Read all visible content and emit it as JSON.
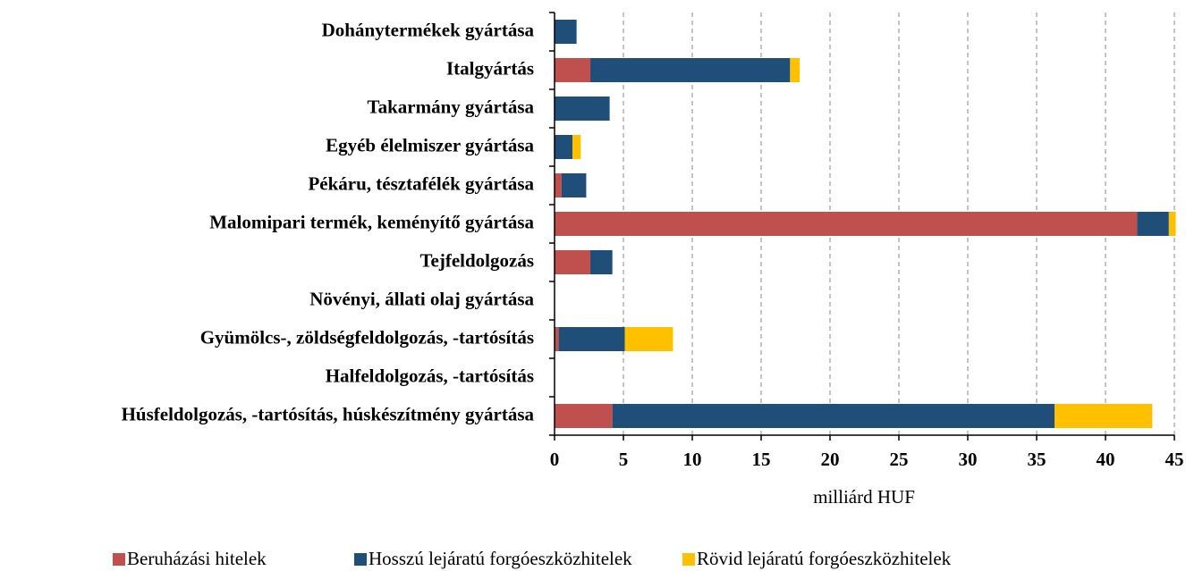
{
  "chart_data": {
    "type": "bar",
    "orientation": "horizontal",
    "stacked": true,
    "xlabel": "milliárd HUF",
    "categories": [
      "Dohánytermékek gyártása",
      "Italgyártás",
      "Takarmány gyártása",
      "Egyéb élelmiszer gyártása",
      "Pékáru, tésztafélék gyártása",
      "Malomipari termék, keményítő gyártása",
      "Tejfeldolgozás",
      "Növényi, állati olaj gyártása",
      "Gyümölcs-, zöldségfeldolgozás, -tartósítás",
      "Halfeldolgozás, -tartósítás",
      "Húsfeldolgozás, -tartósítás, húskészítmény gyártása"
    ],
    "series": [
      {
        "name": "Beruházási hitelek",
        "color": "#c0504d",
        "values": [
          0,
          2.6,
          0,
          0,
          0.5,
          42.3,
          2.6,
          0,
          0.3,
          0,
          4.2
        ]
      },
      {
        "name": "Hosszú lejáratú forgóeszközhitelek",
        "color": "#1f4e79",
        "values": [
          1.6,
          14.5,
          4.0,
          1.3,
          1.8,
          2.3,
          1.6,
          0,
          4.8,
          0,
          32.1
        ]
      },
      {
        "name": "Rövid lejáratú forgóeszközhitelek",
        "color": "#ffc000",
        "values": [
          0,
          0.7,
          0,
          0.6,
          0,
          0.5,
          0,
          0,
          3.5,
          0,
          7.1
        ]
      }
    ],
    "xlim": [
      0,
      45
    ],
    "xticks": [
      0,
      5,
      10,
      15,
      20,
      25,
      30,
      35,
      40,
      45
    ],
    "grid": true,
    "legend": "bottom"
  }
}
